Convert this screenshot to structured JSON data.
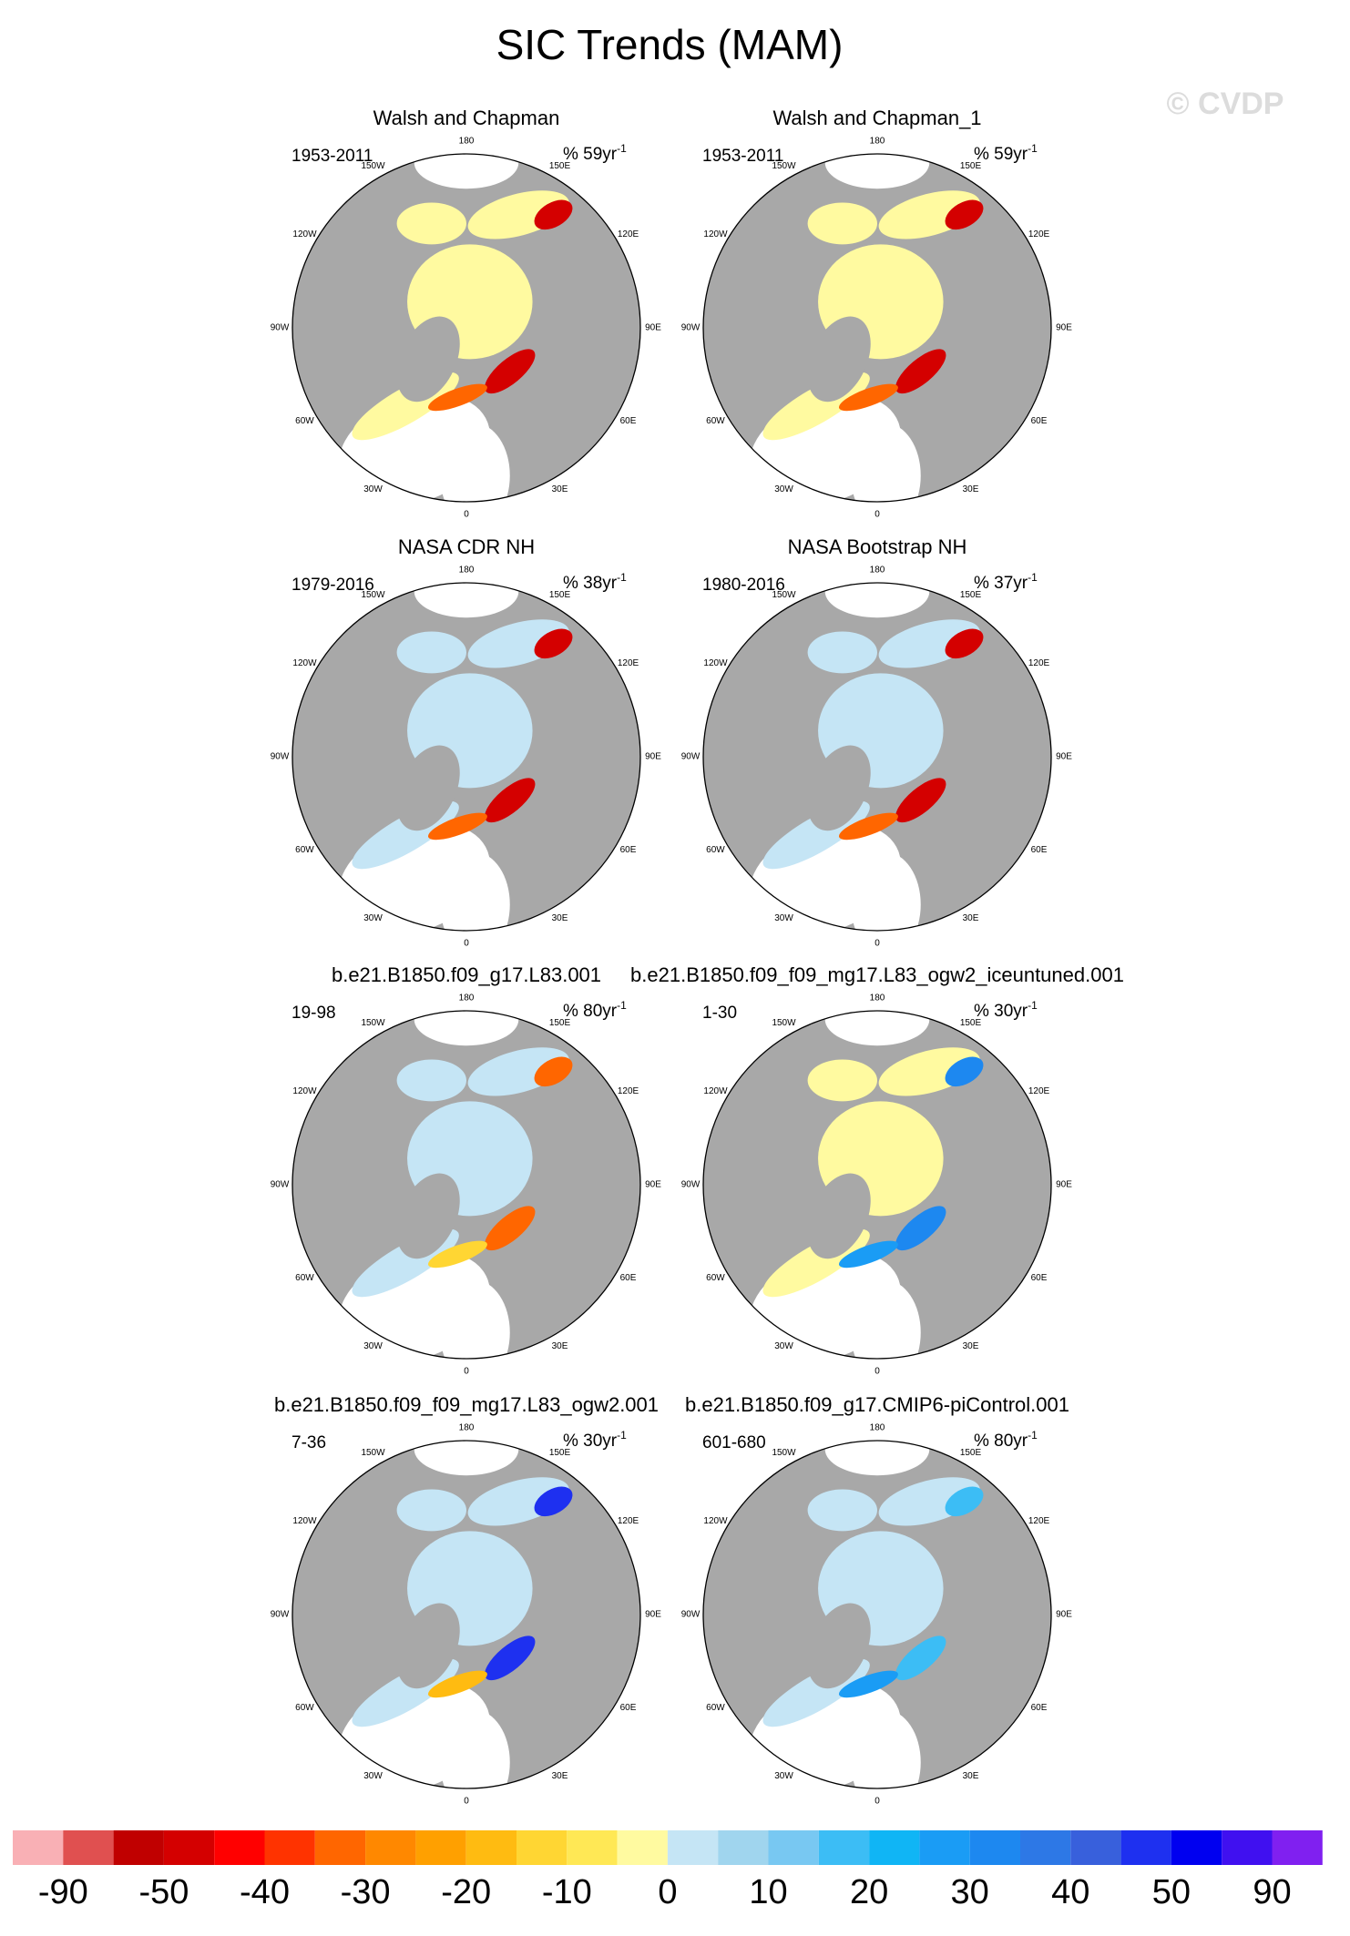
{
  "title": "SIC Trends (MAM)",
  "watermark": "© CVDP",
  "longitude_labels": [
    "0",
    "30E",
    "60E",
    "90E",
    "120E",
    "150E",
    "180",
    "150W",
    "120W",
    "90W",
    "60W",
    "30W"
  ],
  "panels": [
    {
      "title": "Walsh and Chapman",
      "period": "1953-2011",
      "trend": "% 59yr",
      "trend_exponent": "-1"
    },
    {
      "title": "Walsh and Chapman_1",
      "period": "1953-2011",
      "trend": "% 59yr",
      "trend_exponent": "-1"
    },
    {
      "title": "NASA CDR NH",
      "period": "1979-2016",
      "trend": "% 38yr",
      "trend_exponent": "-1"
    },
    {
      "title": "NASA Bootstrap NH",
      "period": "1980-2016",
      "trend": "% 37yr",
      "trend_exponent": "-1"
    },
    {
      "title": "b.e21.B1850.f09_g17.L83.001",
      "period": "19-98",
      "trend": "% 80yr",
      "trend_exponent": "-1"
    },
    {
      "title": "b.e21.B1850.f09_f09_mg17.L83_ogw2_iceuntuned.001",
      "period": "1-30",
      "trend": "% 30yr",
      "trend_exponent": "-1"
    },
    {
      "title": "b.e21.B1850.f09_f09_mg17.L83_ogw2.001",
      "period": "7-36",
      "trend": "% 30yr",
      "trend_exponent": "-1"
    },
    {
      "title": "b.e21.B1850.f09_g17.CMIP6-piControl.001",
      "period": "601-680",
      "trend": "% 80yr",
      "trend_exponent": "-1"
    }
  ],
  "colorbar": {
    "colors": [
      "#f9b0b5",
      "#e05050",
      "#c00000",
      "#d40000",
      "#ff0000",
      "#ff3300",
      "#ff6600",
      "#ff8800",
      "#ffa000",
      "#ffbb11",
      "#ffd633",
      "#ffe855",
      "#fffaa0",
      "#c5e5f5",
      "#a0d5ee",
      "#78c8f2",
      "#3cbdf5",
      "#10b5f5",
      "#1a9cf5",
      "#1d88f0",
      "#2d78e6",
      "#3860dc",
      "#1e30f0",
      "#0000f0",
      "#4010f0",
      "#8020f0"
    ],
    "labels": [
      -90,
      -50,
      -40,
      -30,
      -20,
      -10,
      0,
      10,
      20,
      30,
      40,
      50,
      90
    ]
  }
}
